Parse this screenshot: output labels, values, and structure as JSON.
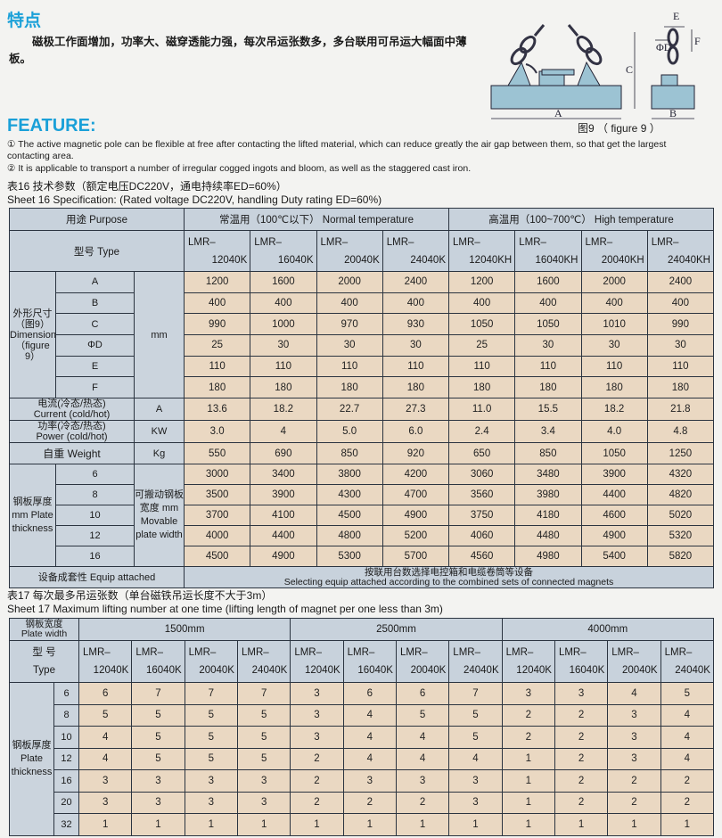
{
  "heading_cn": "特点",
  "intro_cn": "磁极工作面增加，功率大、磁穿透能力强，每次吊运张数多，多台联用可吊运大幅面中薄板。",
  "heading_en": "FEATURE:",
  "features": [
    "① The active magnetic pole can be flexible at free after contacting the lifted material, which can reduce greatly the air gap between them, so that get the largest contacting area.",
    "② It is applicable to transport a number of irregular cogged ingots and bloom, as well as the staggered cast iron."
  ],
  "figure": {
    "caption": "图9 （ figure 9 ）",
    "labels": {
      "A": "A",
      "B": "B",
      "C": "C",
      "D": "ΦD",
      "E": "E",
      "F": "F"
    }
  },
  "sheet16": {
    "title_cn": "表16  技术参数（额定电压DC220V，通电持续率ED=60%）",
    "title_en": "Sheet 16 Specification:  (Rated voltage DC220V, handling Duty rating ED=60%)",
    "purpose": "用途   Purpose",
    "normal": "常温用（100℃以下）  Normal temperature",
    "high": "高温用（100~700℃）  High temperature",
    "type_label": "型号   Type",
    "models": [
      [
        "LMR–",
        "12040K"
      ],
      [
        "LMR–",
        "16040K"
      ],
      [
        "LMR–",
        "20040K"
      ],
      [
        "LMR–",
        "24040K"
      ],
      [
        "LMR–",
        "12040KH"
      ],
      [
        "LMR–",
        "16040KH"
      ],
      [
        "LMR–",
        "20040KH"
      ],
      [
        "LMR–",
        "24040KH"
      ]
    ],
    "dimension_label": "外形尺寸（图9）Dimension（figure 9）",
    "dim_unit": "mm",
    "dims": [
      {
        "name": "A",
        "values": [
          "1200",
          "1600",
          "2000",
          "2400",
          "1200",
          "1600",
          "2000",
          "2400"
        ]
      },
      {
        "name": "B",
        "values": [
          "400",
          "400",
          "400",
          "400",
          "400",
          "400",
          "400",
          "400"
        ]
      },
      {
        "name": "C",
        "values": [
          "990",
          "1000",
          "970",
          "930",
          "1050",
          "1050",
          "1010",
          "990"
        ]
      },
      {
        "name": "ΦD",
        "values": [
          "25",
          "30",
          "30",
          "30",
          "25",
          "30",
          "30",
          "30"
        ]
      },
      {
        "name": "E",
        "values": [
          "110",
          "110",
          "110",
          "110",
          "110",
          "110",
          "110",
          "110"
        ]
      },
      {
        "name": "F",
        "values": [
          "180",
          "180",
          "180",
          "180",
          "180",
          "180",
          "180",
          "180"
        ]
      }
    ],
    "props": [
      {
        "label_cn": "电流(冷态/热态)",
        "label_en": "Current (cold/hot)",
        "unit": "A",
        "values": [
          "13.6",
          "18.2",
          "22.7",
          "27.3",
          "11.0",
          "15.5",
          "18.2",
          "21.8"
        ]
      },
      {
        "label_cn": "功率(冷态/热态)",
        "label_en": "Power (cold/hot)",
        "unit": "KW",
        "values": [
          "3.0",
          "4",
          "5.0",
          "6.0",
          "2.4",
          "3.4",
          "4.0",
          "4.8"
        ]
      },
      {
        "label_cn": "自重",
        "label_en": "Weight",
        "unit": "Kg",
        "values": [
          "550",
          "690",
          "850",
          "920",
          "650",
          "850",
          "1050",
          "1250"
        ]
      }
    ],
    "thickness_label": "钢板厚度 mm Plate thickness",
    "width_label": "可搬动钢板宽度 mm Movable plate width",
    "thickness": [
      {
        "t": "6",
        "values": [
          "3000",
          "3400",
          "3800",
          "4200",
          "3060",
          "3480",
          "3900",
          "4320"
        ]
      },
      {
        "t": "8",
        "values": [
          "3500",
          "3900",
          "4300",
          "4700",
          "3560",
          "3980",
          "4400",
          "4820"
        ]
      },
      {
        "t": "10",
        "values": [
          "3700",
          "4100",
          "4500",
          "4900",
          "3750",
          "4180",
          "4600",
          "5020"
        ]
      },
      {
        "t": "12",
        "values": [
          "4000",
          "4400",
          "4800",
          "5200",
          "4060",
          "4480",
          "4900",
          "5320"
        ]
      },
      {
        "t": "16",
        "values": [
          "4500",
          "4900",
          "5300",
          "5700",
          "4560",
          "4980",
          "5400",
          "5820"
        ]
      }
    ],
    "equip_label": "设备成套性  Equip attached",
    "equip_cn": "按联用台数选择电控箱和电缆卷筒等设备",
    "equip_en": "Selecting equip attached according to the combined sets of connected magnets"
  },
  "sheet17": {
    "title_cn": "表17  每次最多吊运张数（单台磁铁吊运长度不大于3m）",
    "title_en": "Sheet 17 Maximum lifting number at one time (lifting length of magnet per one less than 3m)",
    "width_label_cn": "钢板宽度",
    "width_label_en": "Plate width",
    "widths": [
      "1500mm",
      "2500mm",
      "4000mm"
    ],
    "type_cn": "型  号",
    "type_en": "Type",
    "models": [
      [
        "LMR–",
        "12040K"
      ],
      [
        "LMR–",
        "16040K"
      ],
      [
        "LMR–",
        "20040K"
      ],
      [
        "LMR–",
        "24040K"
      ]
    ],
    "thickness_label": "钢板厚度 Plate thickness",
    "rows": [
      {
        "t": "6",
        "values": [
          "6",
          "7",
          "7",
          "7",
          "3",
          "6",
          "6",
          "7",
          "3",
          "3",
          "4",
          "5"
        ]
      },
      {
        "t": "8",
        "values": [
          "5",
          "5",
          "5",
          "5",
          "3",
          "4",
          "5",
          "5",
          "2",
          "2",
          "3",
          "4"
        ]
      },
      {
        "t": "10",
        "values": [
          "4",
          "5",
          "5",
          "5",
          "3",
          "4",
          "4",
          "5",
          "2",
          "2",
          "3",
          "4"
        ]
      },
      {
        "t": "12",
        "values": [
          "4",
          "5",
          "5",
          "5",
          "2",
          "4",
          "4",
          "4",
          "1",
          "2",
          "3",
          "4"
        ]
      },
      {
        "t": "16",
        "values": [
          "3",
          "3",
          "3",
          "3",
          "2",
          "3",
          "3",
          "3",
          "1",
          "2",
          "2",
          "2"
        ]
      },
      {
        "t": "20",
        "values": [
          "3",
          "3",
          "3",
          "3",
          "2",
          "2",
          "2",
          "3",
          "1",
          "2",
          "2",
          "2"
        ]
      },
      {
        "t": "32",
        "values": [
          "1",
          "1",
          "1",
          "1",
          "1",
          "1",
          "1",
          "1",
          "1",
          "1",
          "1",
          "1"
        ]
      }
    ]
  }
}
